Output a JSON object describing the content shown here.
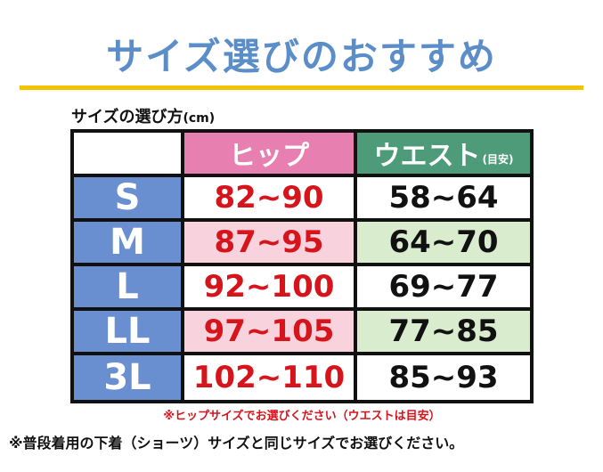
{
  "title": "サイズ選びのおすすめ",
  "subtitle": {
    "text": "サイズの選び方",
    "unit": "(cm)"
  },
  "table": {
    "headers": {
      "hip": "ヒップ",
      "waist": "ウエスト",
      "waist_note": "(目安)"
    },
    "rows": [
      {
        "size": "S",
        "hip": "82~90",
        "waist": "58~64"
      },
      {
        "size": "M",
        "hip": "87~95",
        "waist": "64~70"
      },
      {
        "size": "L",
        "hip": "92~100",
        "waist": "69~77"
      },
      {
        "size": "LL",
        "hip": "97~105",
        "waist": "77~85"
      },
      {
        "size": "3L",
        "hip": "102~110",
        "waist": "85~93"
      }
    ]
  },
  "note_red": "※ヒップサイズでお選びください（ウエストは目安）",
  "note_black": "※普段着用の下着（ショーツ）サイズと同じサイズでお選びください。",
  "colors": {
    "title": "#5b8dc9",
    "rule": "#f5c200",
    "hip_header": "#e77fb0",
    "waist_header": "#4e9b79",
    "size_column": "#6a8fd0",
    "hip_value": "#d6141c",
    "hip_alt_row": "#f8d3dd",
    "waist_alt_row": "#d9eccd"
  }
}
